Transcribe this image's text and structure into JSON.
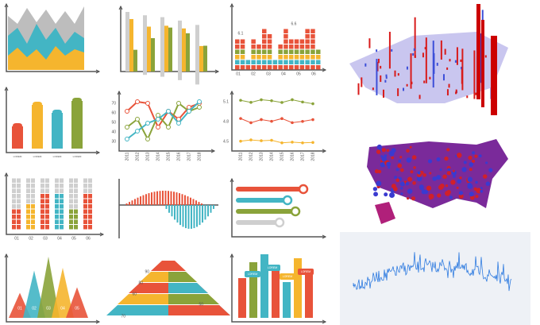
{
  "panels": {
    "stacked_squares": {
      "x_labels": [
        "01",
        "02",
        "03",
        "04",
        "05",
        "06"
      ],
      "annotations": [
        "6.1",
        "6.6"
      ]
    },
    "rounded_bars": {
      "labels": [
        "LOREM",
        "LOREM",
        "LOREM",
        "LOREM"
      ]
    },
    "year_lines": {
      "y_labels": [
        "70",
        "60",
        "50",
        "40",
        "30"
      ],
      "x_labels": [
        "2011",
        "2012",
        "2013",
        "2014",
        "2015",
        "2016",
        "2017",
        "2018"
      ]
    },
    "dot_lines": {
      "y_labels": [
        "5.1",
        "4.8",
        "4.5"
      ],
      "x_labels": [
        "2011",
        "2012",
        "2013",
        "2014",
        "2015",
        "2016",
        "2017",
        "2018"
      ]
    },
    "block_columns": {
      "x_labels": [
        "01",
        "02",
        "03",
        "04",
        "05",
        "06"
      ]
    },
    "triangles": {
      "labels": [
        "01",
        "02",
        "03",
        "04",
        "05"
      ]
    },
    "pyramid": {
      "labels": [
        "90",
        "80",
        "60",
        "50",
        "70"
      ]
    },
    "callout_bars": {
      "labels": [
        "LOREM",
        "LOREM",
        "LOREM",
        "LOREM"
      ]
    }
  }
}
